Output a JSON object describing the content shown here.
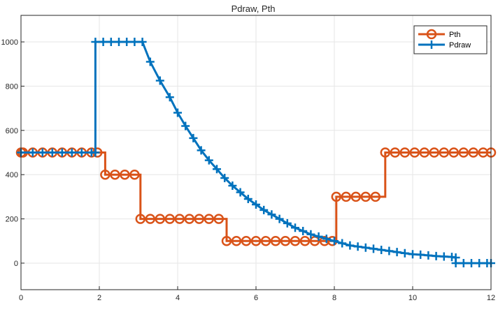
{
  "chart_data": {
    "type": "line",
    "title": "Pdraw, Pth",
    "xlabel": "",
    "ylabel": "",
    "xlim": [
      0,
      12
    ],
    "ylim": [
      -120,
      1120
    ],
    "xticks": [
      0,
      2,
      4,
      6,
      8,
      10,
      12
    ],
    "yticks": [
      0,
      200,
      400,
      600,
      800,
      1000
    ],
    "grid": true,
    "legend_position": "top-right",
    "series": [
      {
        "name": "Pth",
        "color": "#D95319",
        "marker": "circle",
        "step": true,
        "x": [
          0,
          0.05,
          0.3,
          0.55,
          0.8,
          1.05,
          1.3,
          1.55,
          1.8,
          1.95,
          2.15,
          2.4,
          2.65,
          2.9,
          3.05,
          3.3,
          3.55,
          3.8,
          4.05,
          4.3,
          4.55,
          4.8,
          5.05,
          5.25,
          5.5,
          5.75,
          6.0,
          6.25,
          6.5,
          6.75,
          7.0,
          7.25,
          7.5,
          7.75,
          7.95,
          8.05,
          8.3,
          8.55,
          8.8,
          9.05,
          9.3,
          9.55,
          9.8,
          10.05,
          10.3,
          10.55,
          10.8,
          11.05,
          11.3,
          11.55,
          11.8,
          12.0
        ],
        "y": [
          500,
          500,
          500,
          500,
          500,
          500,
          500,
          500,
          500,
          500,
          400,
          400,
          400,
          400,
          200,
          200,
          200,
          200,
          200,
          200,
          200,
          200,
          200,
          100,
          100,
          100,
          100,
          100,
          100,
          100,
          100,
          100,
          100,
          100,
          100,
          300,
          300,
          300,
          300,
          300,
          500,
          500,
          500,
          500,
          500,
          500,
          500,
          500,
          500,
          500,
          500,
          500
        ]
      },
      {
        "name": "Pdraw",
        "color": "#0072BD",
        "marker": "plus",
        "step": false,
        "x": [
          0,
          0.3,
          0.55,
          0.8,
          1.05,
          1.3,
          1.55,
          1.8,
          1.9,
          1.9,
          2.1,
          2.3,
          2.5,
          2.7,
          2.9,
          3.1,
          3.3,
          3.55,
          3.8,
          4.0,
          4.2,
          4.4,
          4.6,
          4.8,
          5.0,
          5.2,
          5.4,
          5.6,
          5.8,
          6.0,
          6.2,
          6.4,
          6.6,
          6.8,
          7.0,
          7.2,
          7.4,
          7.6,
          7.8,
          8.0,
          8.2,
          8.4,
          8.6,
          8.8,
          9.0,
          9.2,
          9.4,
          9.6,
          9.8,
          10.0,
          10.2,
          10.4,
          10.6,
          10.8,
          11.0,
          11.1,
          11.1,
          11.3,
          11.5,
          11.7,
          11.9,
          12.0
        ],
        "y": [
          500,
          500,
          500,
          500,
          500,
          500,
          500,
          500,
          500,
          1000,
          1000,
          1000,
          1000,
          1000,
          1000,
          1000,
          910,
          825,
          750,
          680,
          620,
          565,
          510,
          465,
          425,
          385,
          350,
          320,
          290,
          265,
          240,
          220,
          200,
          180,
          160,
          145,
          130,
          120,
          110,
          100,
          90,
          80,
          75,
          70,
          65,
          60,
          55,
          50,
          45,
          40,
          38,
          35,
          32,
          30,
          28,
          25,
          0,
          0,
          0,
          0,
          0,
          0
        ]
      }
    ]
  }
}
